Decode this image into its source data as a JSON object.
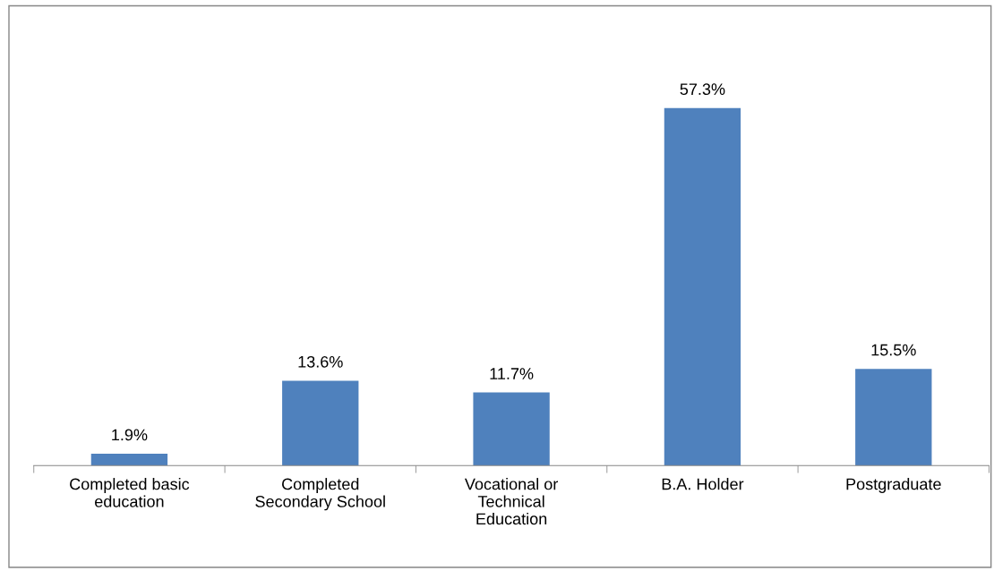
{
  "chart_data": {
    "type": "bar",
    "categories": [
      "Completed basic\neducation",
      "Completed\nSecondary School",
      "Vocational or\nTechnical\nEducation",
      "B.A. Holder",
      "Postgraduate"
    ],
    "values": [
      1.9,
      13.6,
      11.7,
      57.3,
      15.5
    ],
    "value_labels": [
      "1.9%",
      "13.6%",
      "11.7%",
      "57.3%",
      "15.5%"
    ],
    "color": "#4f81bd",
    "grid": false,
    "legend": false
  }
}
